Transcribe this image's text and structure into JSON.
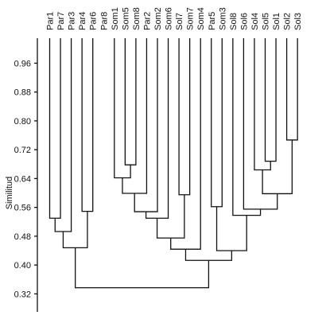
{
  "chart_data": {
    "type": "dendrogram",
    "ylabel": "Similitud",
    "ylim": [
      0.27,
      1.025
    ],
    "y_ticks": [
      0.96,
      0.88,
      0.8,
      0.72,
      0.64,
      0.56,
      0.48,
      0.4,
      0.32
    ],
    "tick_labels": [
      "0.96",
      "0.88",
      "0.80",
      "0.72",
      "0.64",
      "0.56",
      "0.48",
      "0.40",
      "0.32"
    ],
    "leaves": [
      "Par1",
      "Par7",
      "Par3",
      "Par4",
      "Par6",
      "Par8",
      "Som1",
      "Som5",
      "Som8",
      "Par2",
      "Som2",
      "Som6",
      "Sol7",
      "Som7",
      "Som4",
      "Par5",
      "Som3",
      "Sol8",
      "Sol6",
      "Sol4",
      "Sol5",
      "Sol1",
      "Sol2",
      "Sol3"
    ],
    "merges": [
      {
        "id": "A",
        "left": "Par1",
        "right": "Par7",
        "height": 0.53
      },
      {
        "id": "B",
        "left": "A",
        "right": "Par3",
        "height": 0.493
      },
      {
        "id": "C",
        "left": "Par4",
        "right": "Par6",
        "height": 0.549
      },
      {
        "id": "D",
        "left": "B",
        "right": "C",
        "height": 0.448
      },
      {
        "id": "E",
        "left": "Som5",
        "right": "Som8",
        "height": 0.678
      },
      {
        "id": "F",
        "left": "Som1",
        "right": "E",
        "height": 0.642
      },
      {
        "id": "G",
        "left": "F",
        "right": "Par2",
        "height": 0.599
      },
      {
        "id": "H",
        "left": "G",
        "right": "Som2",
        "height": 0.548
      },
      {
        "id": "I",
        "left": "H",
        "right": "Som6",
        "height": 0.53
      },
      {
        "id": "J",
        "left": "Sol7",
        "right": "Som7",
        "height": 0.595
      },
      {
        "id": "K",
        "left": "I",
        "right": "J",
        "height": 0.475
      },
      {
        "id": "L",
        "left": "K",
        "right": "Som4",
        "height": 0.444
      },
      {
        "id": "M",
        "left": "Par5",
        "right": "Som3",
        "height": 0.562
      },
      {
        "id": "N",
        "left": "Sol5",
        "right": "Sol1",
        "height": 0.688
      },
      {
        "id": "O",
        "left": "Sol4",
        "right": "N",
        "height": 0.664
      },
      {
        "id": "P",
        "left": "Sol2",
        "right": "Sol3",
        "height": 0.747
      },
      {
        "id": "Q",
        "left": "O",
        "right": "P",
        "height": 0.598
      },
      {
        "id": "R",
        "left": "Sol6",
        "right": "Q",
        "height": 0.555
      },
      {
        "id": "S",
        "left": "Sol8",
        "right": "R",
        "height": 0.538
      },
      {
        "id": "T",
        "left": "M",
        "right": "S",
        "height": 0.44
      },
      {
        "id": "U",
        "left": "L",
        "right": "T",
        "height": 0.413
      },
      {
        "id": "V",
        "left": "D",
        "right": "U",
        "height": 0.337
      }
    ]
  }
}
